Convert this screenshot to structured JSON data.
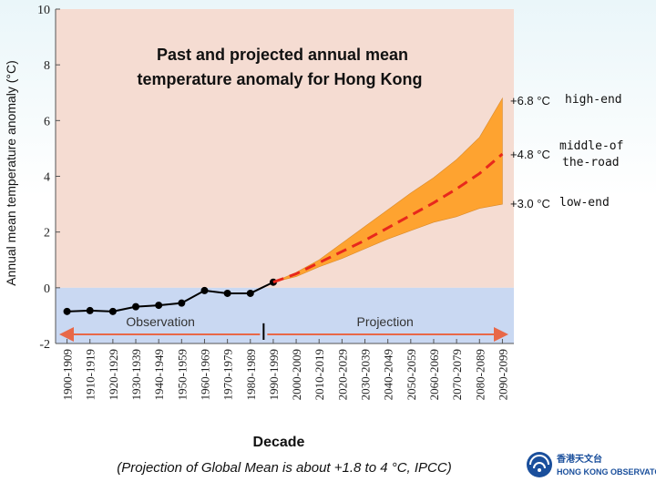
{
  "chart_data": {
    "type": "line",
    "title": "Past and projected annual mean temperature anomaly for Hong Kong",
    "title_lines": [
      "Past and projected annual mean",
      "temperature anomaly for Hong Kong"
    ],
    "ylabel": "Annual mean temperature anomaly (°C)",
    "xlabel": "Decade",
    "ylim": [
      -2,
      10
    ],
    "yticks": [
      -2,
      0,
      2,
      4,
      6,
      8,
      10
    ],
    "categories": [
      "1900-1909",
      "1910-1919",
      "1920-1929",
      "1930-1939",
      "1940-1949",
      "1950-1959",
      "1960-1969",
      "1970-1979",
      "1980-1989",
      "1990-1999",
      "2000-2009",
      "2010-2019",
      "2020-2029",
      "2030-2039",
      "2040-2049",
      "2050-2059",
      "2060-2069",
      "2070-2079",
      "2080-2089",
      "2090-2099"
    ],
    "series": [
      {
        "values": [
          -0.85,
          -0.82,
          -0.85,
          -0.68,
          -0.63,
          -0.55,
          -0.1,
          -0.2,
          -0.2,
          0.2,
          null,
          null,
          null,
          null,
          null,
          null,
          null,
          null,
          null,
          null
        ]
      },
      {
        "values": [
          null,
          null,
          null,
          null,
          null,
          null,
          null,
          null,
          null,
          0.2,
          0.5,
          0.9,
          1.3,
          1.7,
          2.15,
          2.6,
          3.05,
          3.55,
          4.1,
          4.8
        ]
      }
    ],
    "range_band": {
      "low": [
        null,
        null,
        null,
        null,
        null,
        null,
        null,
        null,
        null,
        0.2,
        0.4,
        0.75,
        1.05,
        1.4,
        1.75,
        2.05,
        2.35,
        2.55,
        2.85,
        3.0
      ],
      "high": [
        null,
        null,
        null,
        null,
        null,
        null,
        null,
        null,
        null,
        0.2,
        0.55,
        1.0,
        1.6,
        2.2,
        2.8,
        3.4,
        3.95,
        4.6,
        5.4,
        6.8
      ]
    },
    "colors": {
      "warm_zone": "#f5dcd2",
      "cool_zone": "#c9d8f2",
      "band": "#ff9c1e",
      "observation_line": "#000000",
      "projection_line": "#e8281c",
      "arrow": "#e86848"
    },
    "segments": {
      "observation_label": "Observation",
      "projection_label": "Projection"
    },
    "annotations": [
      {
        "value_label": "+6.8 °C",
        "scenario": [
          "high-end"
        ]
      },
      {
        "value_label": "+4.8 °C",
        "scenario": [
          "middle-of",
          "the-road"
        ]
      },
      {
        "value_label": "+3.0 °C",
        "scenario": [
          "low-end"
        ]
      }
    ],
    "footnote": "(Projection of Global Mean is about +1.8 to 4 °C, IPCC)"
  },
  "logo": {
    "name_cn": "香港天文台",
    "name_en": "HONG KONG OBSERVATORY"
  }
}
